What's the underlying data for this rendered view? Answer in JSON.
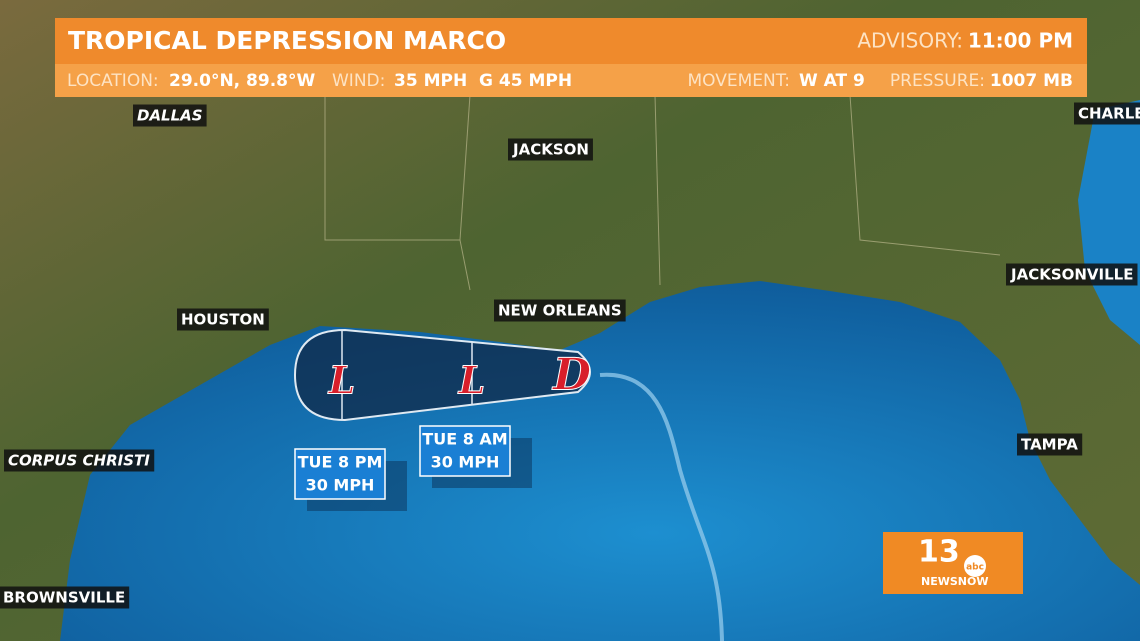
{
  "header": {
    "title": "TROPICAL DEPRESSION MARCO",
    "advisory_label": "ADVISORY:",
    "advisory_time": "11:00 PM",
    "location_label": "LOCATION:",
    "location": "29.0°N, 89.8°W",
    "wind_label": "WIND:",
    "wind": "35 MPH  G 45 MPH",
    "movement_label": "MOVEMENT:",
    "movement": "W AT 9",
    "pressure_label": "PRESSURE:",
    "pressure": "1007 MB"
  },
  "cities": [
    "DALLAS",
    "JACKSON",
    "HOUSTON",
    "NEW ORLEANS",
    "JACKSONVILLE",
    "TAMPA",
    "CORPUS CHRISTI",
    "BROWNSVILLE",
    "CHARLE"
  ],
  "storm_markers": [
    "L",
    "L",
    "D"
  ],
  "forecast_points": [
    {
      "time": "TUE 8 PM",
      "wind": "30 MPH"
    },
    {
      "time": "TUE 8 AM",
      "wind": "30 MPH"
    }
  ],
  "logo": {
    "number": "13",
    "network": "abc",
    "brand": "NEWSNOW"
  }
}
